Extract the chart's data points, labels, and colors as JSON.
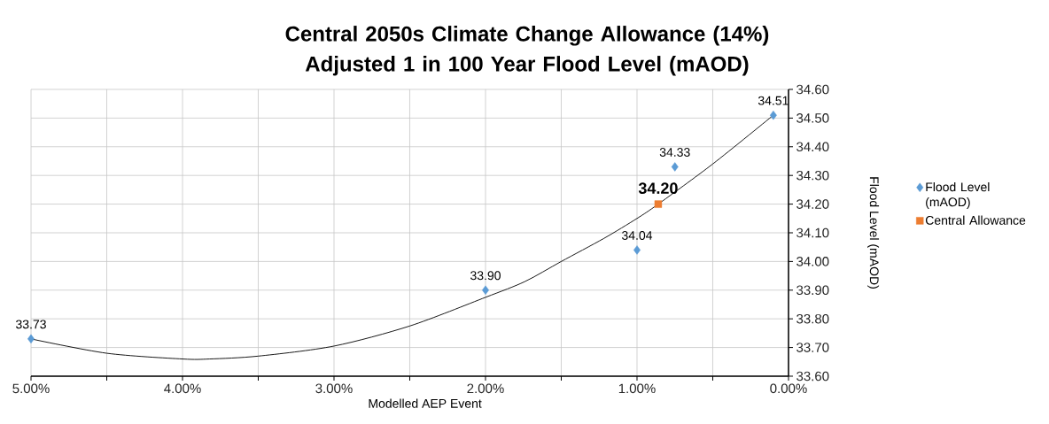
{
  "chart_data": {
    "type": "scatter",
    "title": "Central 2050s Climate Change Allowance (14%) Adjusted 1 in 100 Year Flood Level (mAOD)",
    "xlabel": "Modelled AEP Event",
    "ylabel": "Flood Level (mAOD)",
    "xlim": [
      5,
      0
    ],
    "ylim": [
      33.6,
      34.6
    ],
    "xticks": [
      {
        "value": 5,
        "label": "5.00%"
      },
      {
        "value": 4.5,
        "label": null
      },
      {
        "value": 4,
        "label": "4.00%"
      },
      {
        "value": 3.5,
        "label": null
      },
      {
        "value": 3,
        "label": "3.00%"
      },
      {
        "value": 2.5,
        "label": null
      },
      {
        "value": 2,
        "label": "2.00%"
      },
      {
        "value": 1.5,
        "label": null
      },
      {
        "value": 1,
        "label": "1.00%"
      },
      {
        "value": 0.5,
        "label": null
      },
      {
        "value": 0,
        "label": "0.00%"
      }
    ],
    "yticks": [
      {
        "value": 33.6,
        "label": "33.60"
      },
      {
        "value": 33.7,
        "label": "33.70"
      },
      {
        "value": 33.8,
        "label": "33.80"
      },
      {
        "value": 33.9,
        "label": "33.90"
      },
      {
        "value": 34.0,
        "label": "34.00"
      },
      {
        "value": 34.1,
        "label": "34.10"
      },
      {
        "value": 34.2,
        "label": "34.20"
      },
      {
        "value": 34.3,
        "label": "34.30"
      },
      {
        "value": 34.4,
        "label": "34.40"
      },
      {
        "value": 34.5,
        "label": "34.50"
      },
      {
        "value": 34.6,
        "label": "34.60"
      }
    ],
    "grid": true,
    "legend": "right",
    "series": [
      {
        "name": "Flood Level (mAOD)",
        "color": "#5b9bd5",
        "marker": "diamond",
        "x": [
          5,
          2,
          1,
          0.75,
          0.1
        ],
        "values": [
          33.73,
          33.9,
          34.04,
          34.33,
          34.51
        ],
        "value_labels": [
          "33.73",
          "33.90",
          "34.04",
          "34.33",
          "34.51"
        ]
      },
      {
        "name": "Central Allowance",
        "color": "#ed7d31",
        "marker": "square",
        "x": [
          0.86
        ],
        "values": [
          34.2
        ],
        "value_labels": [
          "34.20"
        ]
      },
      {
        "type": "line",
        "color": "#000000",
        "marker": "none",
        "x": [
          5,
          4.5,
          4,
          3.82,
          3.5,
          3,
          2.5,
          2,
          1.74,
          1.5,
          1.22,
          1,
          0.86,
          0.5,
          0.1
        ],
        "values": [
          33.73,
          33.68,
          33.66,
          33.66,
          33.67,
          33.705,
          33.775,
          33.875,
          33.93,
          34.0,
          34.08,
          34.15,
          34.2,
          34.34,
          34.51
        ]
      }
    ]
  }
}
